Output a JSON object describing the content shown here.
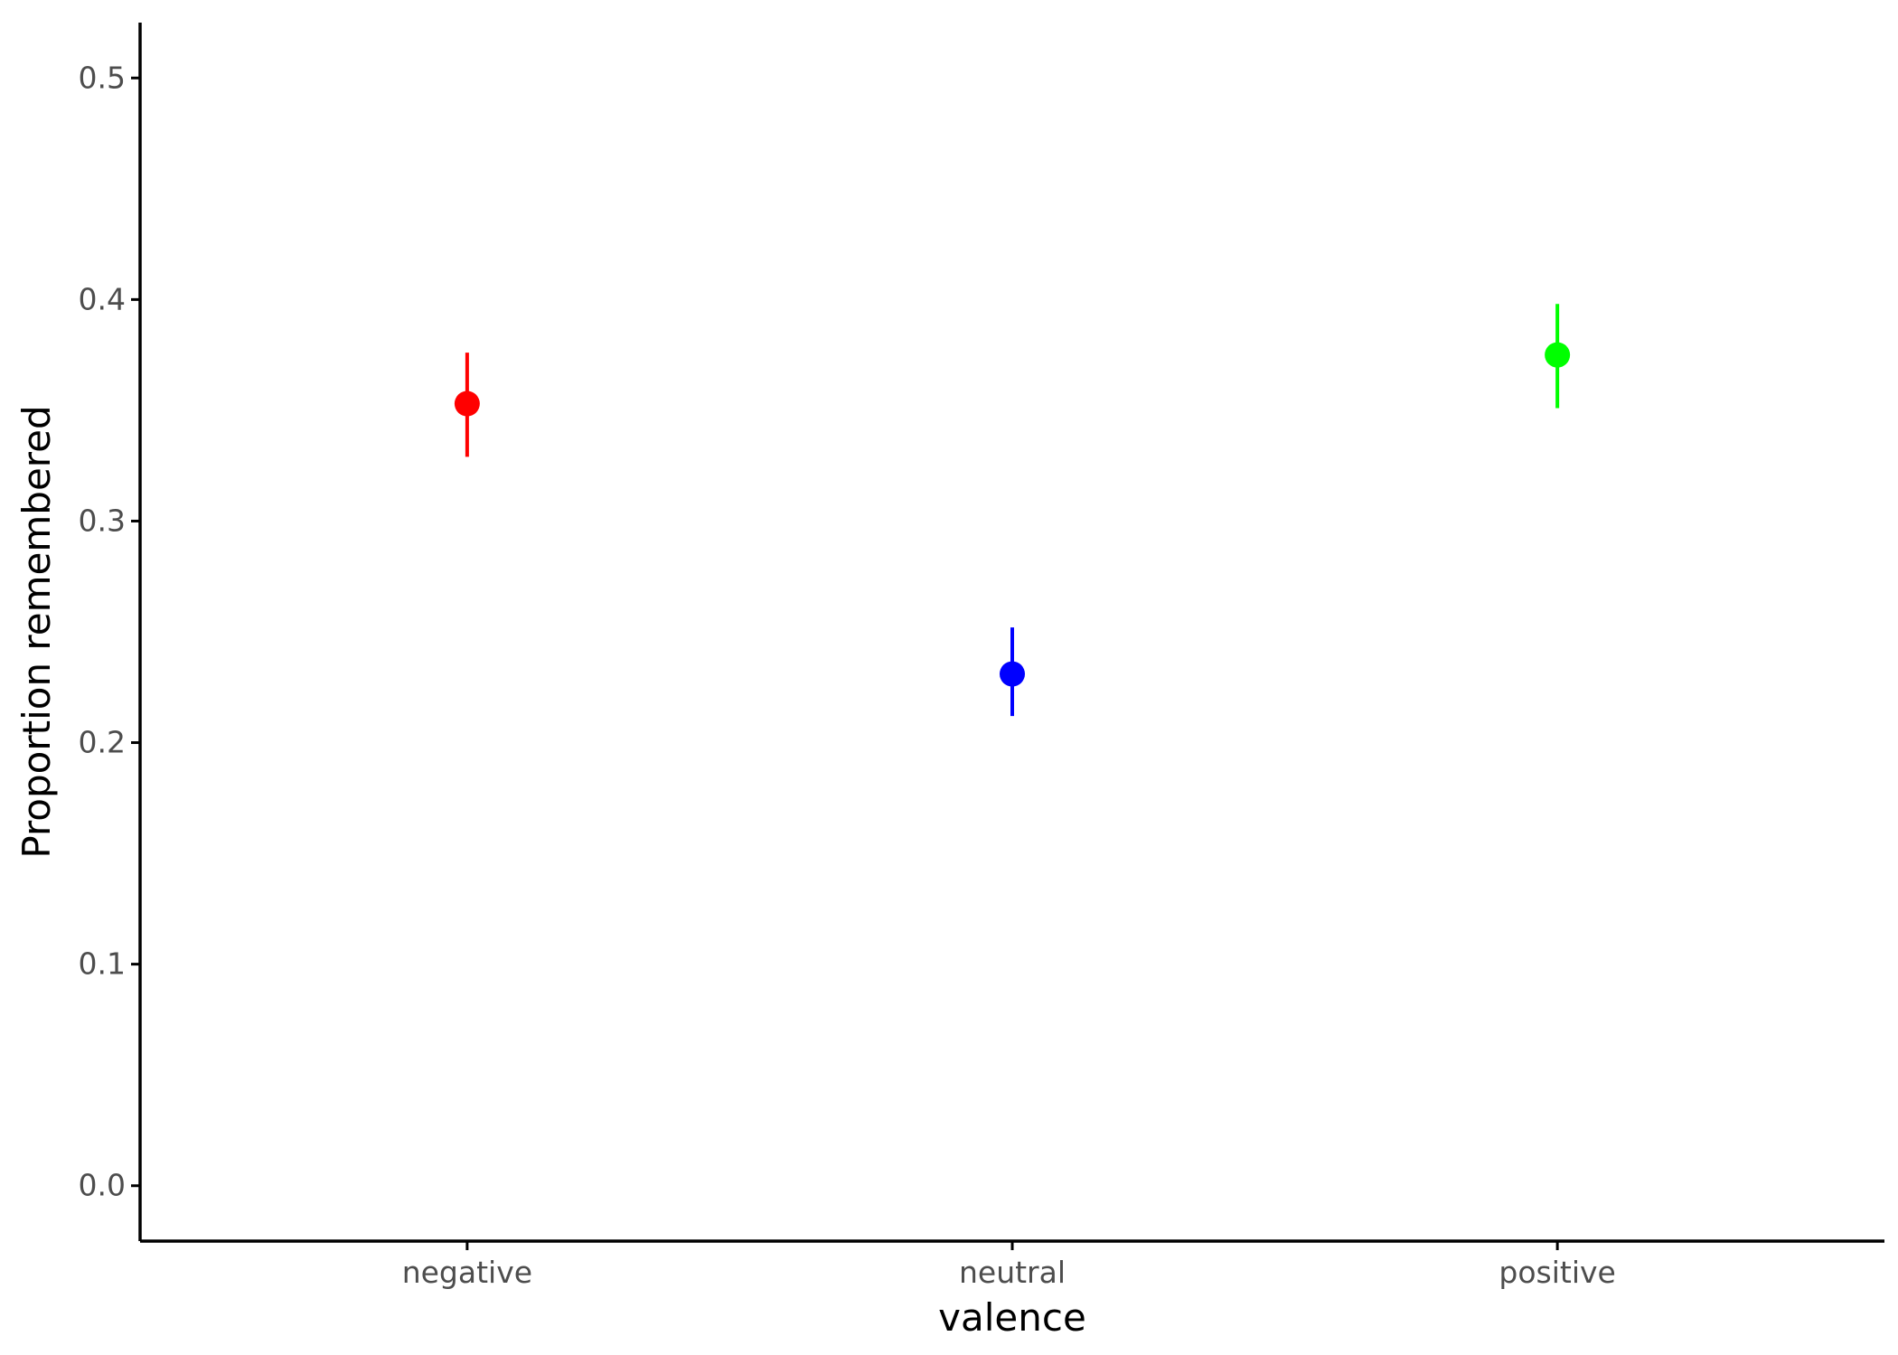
{
  "chart_data": {
    "type": "scatter",
    "xlabel": "valence",
    "ylabel": "Proportion remembered",
    "categories": [
      "negative",
      "neutral",
      "positive"
    ],
    "ylim": [
      -0.025,
      0.525
    ],
    "yticks": [
      0.0,
      0.1,
      0.2,
      0.3,
      0.4,
      0.5
    ],
    "ytick_labels": [
      "0.0",
      "0.1",
      "0.2",
      "0.3",
      "0.4",
      "0.5"
    ],
    "grid": false,
    "points": [
      {
        "category": "negative",
        "value": 0.353,
        "lower": 0.329,
        "upper": 0.376,
        "color": "#ff0000"
      },
      {
        "category": "neutral",
        "value": 0.231,
        "lower": 0.212,
        "upper": 0.252,
        "color": "#0000ff"
      },
      {
        "category": "positive",
        "value": 0.375,
        "lower": 0.351,
        "upper": 0.398,
        "color": "#00ff00"
      }
    ]
  }
}
